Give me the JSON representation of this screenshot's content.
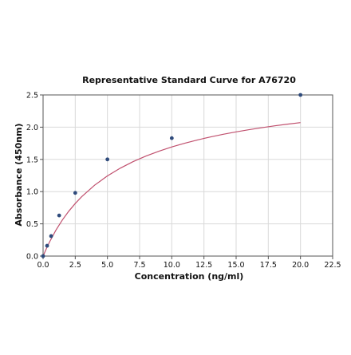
{
  "chart_data": {
    "type": "scatter",
    "title": "Representative Standard Curve for A76720",
    "xlabel": "Concentration (ng/ml)",
    "ylabel": "Absorbance (450nm)",
    "xlim": [
      0,
      22.5
    ],
    "ylim": [
      0,
      2.5
    ],
    "x_ticks": [
      0,
      2.5,
      5,
      7.5,
      10,
      12.5,
      15,
      17.5,
      20,
      22.5
    ],
    "x_tick_labels": [
      "0.0",
      "2.5",
      "5.0",
      "7.5",
      "10.0",
      "12.5",
      "15.0",
      "17.5",
      "20.0",
      "22.5"
    ],
    "y_ticks": [
      0,
      0.5,
      1,
      1.5,
      2,
      2.5
    ],
    "y_tick_labels": [
      "0.0",
      "0.5",
      "1.0",
      "1.5",
      "2.0",
      "2.5"
    ],
    "grid": true,
    "series": [
      {
        "kind": "points",
        "x": [
          0,
          0.3125,
          0.625,
          1.25,
          2.5,
          5,
          10,
          20
        ],
        "y": [
          0.0,
          0.16,
          0.31,
          0.63,
          0.98,
          1.5,
          1.83,
          2.5
        ],
        "color": "#2f4b7c"
      },
      {
        "kind": "fit-curve",
        "x": [
          0,
          0.25,
          0.5,
          1,
          1.5,
          2,
          2.5,
          3,
          4,
          5,
          6,
          7,
          8,
          9,
          10,
          11,
          12,
          13,
          14,
          15,
          16,
          17,
          18,
          19,
          20
        ],
        "y": [
          0.0,
          0.113,
          0.218,
          0.403,
          0.561,
          0.697,
          0.816,
          0.921,
          1.099,
          1.244,
          1.364,
          1.466,
          1.552,
          1.627,
          1.693,
          1.751,
          1.802,
          1.848,
          1.89,
          1.927,
          1.961,
          1.992,
          2.021,
          2.047,
          2.071
        ],
        "color": "#c0506e"
      }
    ]
  }
}
